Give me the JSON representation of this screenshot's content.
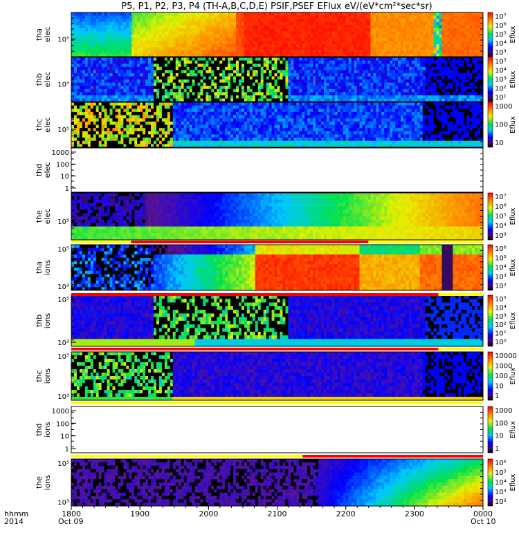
{
  "title": "P5, P1, P2, P3, P4 (TH-A,B,C,D,E) PSIF,PSEF EFlux eV/(eV*cm²*sec*sr)",
  "colorbar_label": "Eflux",
  "x_axis": {
    "row_label": "hhmm",
    "year_label": "2014",
    "ticks": [
      {
        "label": "1800",
        "hour": 18
      },
      {
        "label": "1900",
        "hour": 19
      },
      {
        "label": "2000",
        "hour": 20
      },
      {
        "label": "2100",
        "hour": 21
      },
      {
        "label": "2200",
        "hour": 22
      },
      {
        "label": "2300",
        "hour": 23
      },
      {
        "label": "0000",
        "hour": 24
      }
    ],
    "date_start": "Oct 09",
    "date_end": "Oct 10"
  },
  "chart_data": {
    "type": "heatmap",
    "x_range_hours": [
      18,
      24
    ],
    "colormap": "rainbow (black-purple-blue-cyan-green-yellow-red)",
    "panels": [
      {
        "id": "tha-elec",
        "label_top": "tha",
        "label_bottom": "elec",
        "y_ticks": [
          "10⁵"
        ],
        "colorbar": [
          "10³",
          "10⁴",
          "10⁵",
          "10⁶",
          "10⁷"
        ],
        "has_data": true
      },
      {
        "id": "thb-elec",
        "label_top": "thb",
        "label_bottom": "elec",
        "y_ticks": [
          "10⁵"
        ],
        "colorbar": [
          "10¹",
          "10²",
          "10³",
          "10⁴",
          "10⁵"
        ],
        "has_data": true
      },
      {
        "id": "thc-elec",
        "label_top": "thc",
        "label_bottom": "elec",
        "y_ticks": [
          "10⁵"
        ],
        "colorbar": [
          "10",
          "100",
          "1000"
        ],
        "has_data": true
      },
      {
        "id": "thd-elec",
        "label_top": "thd",
        "label_bottom": "elec",
        "y_ticks": [
          "1000",
          "100",
          "10",
          "1"
        ],
        "colorbar": [],
        "has_data": false
      },
      {
        "id": "the-elec",
        "label_top": "the",
        "label_bottom": "elec",
        "y_ticks": [
          "10⁵"
        ],
        "colorbar": [
          "10³",
          "10⁴",
          "10⁵",
          "10⁶",
          "10⁷"
        ],
        "has_data": true
      },
      {
        "id": "tha-ions",
        "label_top": "tha",
        "label_bottom": "ions",
        "y_ticks": [
          "10⁵",
          "10³"
        ],
        "colorbar": [
          "10²",
          "10³",
          "10⁴",
          "10⁵",
          "10⁶"
        ],
        "has_data": true
      },
      {
        "id": "thb-ions",
        "label_top": "thb",
        "label_bottom": "ions",
        "y_ticks": [
          "10⁵",
          "10³"
        ],
        "colorbar": [
          "10⁰",
          "10¹",
          "10²",
          "10³",
          "10⁴",
          "10⁵"
        ],
        "has_data": true
      },
      {
        "id": "thc-ions",
        "label_top": "thc",
        "label_bottom": "ions",
        "y_ticks": [
          "10⁵",
          "10³"
        ],
        "colorbar": [
          "1",
          "10",
          "100",
          "1000",
          "10000"
        ],
        "has_data": true
      },
      {
        "id": "thd-ions",
        "label_top": "thd",
        "label_bottom": "ions",
        "y_ticks": [
          "1000",
          "100",
          "10",
          "1"
        ],
        "colorbar": [
          "1",
          "10",
          "100",
          "1000"
        ],
        "has_data": false
      },
      {
        "id": "the-ions",
        "label_top": "the",
        "label_bottom": "ions",
        "y_ticks": [
          "10⁵",
          "10³"
        ],
        "colorbar": [
          "10²",
          "10³",
          "10⁴",
          "10⁵",
          "10⁶"
        ],
        "has_data": true
      }
    ],
    "mode_bars": [
      {
        "after_panel": "the-elec",
        "segments": [
          {
            "from": 18.0,
            "to": 18.87,
            "color": "#ffff00"
          },
          {
            "from": 18.87,
            "to": 22.33,
            "color": "#ff0000"
          },
          {
            "from": 22.33,
            "to": 24.0,
            "color": "#ffff00"
          }
        ]
      },
      {
        "after_panel": "tha-ions",
        "segments": [
          {
            "from": 18.0,
            "to": 23.35,
            "color": "#ff0000"
          },
          {
            "from": 23.35,
            "to": 24.0,
            "color": "#ffff00"
          }
        ]
      },
      {
        "after_panel": "thb-ions",
        "segments": [
          {
            "from": 18.0,
            "to": 23.35,
            "color": "#ff0000"
          },
          {
            "from": 23.35,
            "to": 24.0,
            "color": "#ffff00"
          }
        ]
      },
      {
        "after_panel": "thc-ions",
        "segments": [
          {
            "from": 18.0,
            "to": 24.0,
            "color": "#ffff00"
          }
        ]
      },
      {
        "after_panel": "thd-ions",
        "segments": [
          {
            "from": 18.0,
            "to": 21.37,
            "color": "#ffff00"
          },
          {
            "from": 21.37,
            "to": 24.0,
            "color": "#ff0000"
          }
        ]
      }
    ]
  }
}
